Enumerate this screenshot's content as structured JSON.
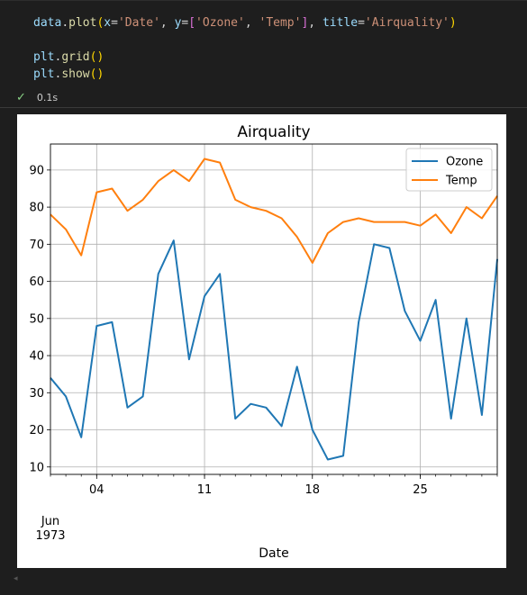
{
  "code_cell": {
    "lines": [
      [
        {
          "t": "data",
          "c": "var"
        },
        {
          "t": ".",
          "c": "plain"
        },
        {
          "t": "plot",
          "c": "fn"
        },
        {
          "t": "(",
          "c": "par"
        },
        {
          "t": "x",
          "c": "var"
        },
        {
          "t": "=",
          "c": "plain"
        },
        {
          "t": "'Date'",
          "c": "str"
        },
        {
          "t": ", ",
          "c": "plain"
        },
        {
          "t": "y",
          "c": "var"
        },
        {
          "t": "=",
          "c": "plain"
        },
        {
          "t": "[",
          "c": "brk"
        },
        {
          "t": "'Ozone'",
          "c": "str"
        },
        {
          "t": ", ",
          "c": "plain"
        },
        {
          "t": "'Temp'",
          "c": "str"
        },
        {
          "t": "]",
          "c": "brk"
        },
        {
          "t": ", ",
          "c": "plain"
        },
        {
          "t": "title",
          "c": "var"
        },
        {
          "t": "=",
          "c": "plain"
        },
        {
          "t": "'Airquality'",
          "c": "str"
        },
        {
          "t": ")",
          "c": "par"
        }
      ],
      [],
      [
        {
          "t": "plt",
          "c": "var"
        },
        {
          "t": ".",
          "c": "plain"
        },
        {
          "t": "grid",
          "c": "fn"
        },
        {
          "t": "()",
          "c": "par"
        }
      ],
      [
        {
          "t": "plt",
          "c": "var"
        },
        {
          "t": ".",
          "c": "plain"
        },
        {
          "t": "show",
          "c": "fn"
        },
        {
          "t": "()",
          "c": "par"
        }
      ]
    ],
    "status_icon": "check-icon",
    "duration": "0.1s"
  },
  "colors": {
    "ozone": "#1f77b4",
    "temp": "#ff7f0e",
    "grid": "#b0b0b0",
    "status_check": "#89d185"
  },
  "chart_data": {
    "type": "line",
    "title": "Airquality",
    "xlabel": "Date",
    "ylabel": "",
    "x": [
      "1973-06-01",
      "1973-06-02",
      "1973-06-03",
      "1973-06-04",
      "1973-06-05",
      "1973-06-06",
      "1973-06-07",
      "1973-06-08",
      "1973-06-09",
      "1973-06-10",
      "1973-06-11",
      "1973-06-12",
      "1973-06-13",
      "1973-06-14",
      "1973-06-15",
      "1973-06-16",
      "1973-06-17",
      "1973-06-18",
      "1973-06-19",
      "1973-06-20",
      "1973-06-21",
      "1973-06-22",
      "1973-06-23",
      "1973-06-24",
      "1973-06-25",
      "1973-06-26",
      "1973-06-27",
      "1973-06-28",
      "1973-06-29",
      "1973-06-30"
    ],
    "x_major_ticks": [
      {
        "date": "1973-06-04",
        "label": "04"
      },
      {
        "date": "1973-06-11",
        "label": "11"
      },
      {
        "date": "1973-06-18",
        "label": "18"
      },
      {
        "date": "1973-06-25",
        "label": "25"
      }
    ],
    "x_offset_label": [
      "Jun",
      "1973"
    ],
    "y_ticks": [
      10,
      20,
      30,
      40,
      50,
      60,
      70,
      80,
      90
    ],
    "ylim": [
      8,
      97
    ],
    "grid": true,
    "legend_position": "top-right",
    "series": [
      {
        "name": "Ozone",
        "values": [
          34,
          29,
          18,
          48,
          49,
          26,
          29,
          62,
          71,
          39,
          56,
          62,
          23,
          27,
          26,
          21,
          37,
          20,
          12,
          13,
          49,
          70,
          69,
          52,
          44,
          55,
          23,
          50,
          24,
          66
        ]
      },
      {
        "name": "Temp",
        "values": [
          78,
          74,
          67,
          84,
          85,
          79,
          82,
          87,
          90,
          87,
          93,
          92,
          82,
          80,
          79,
          77,
          72,
          65,
          73,
          76,
          77,
          76,
          76,
          76,
          75,
          78,
          73,
          80,
          77,
          83
        ]
      }
    ]
  }
}
